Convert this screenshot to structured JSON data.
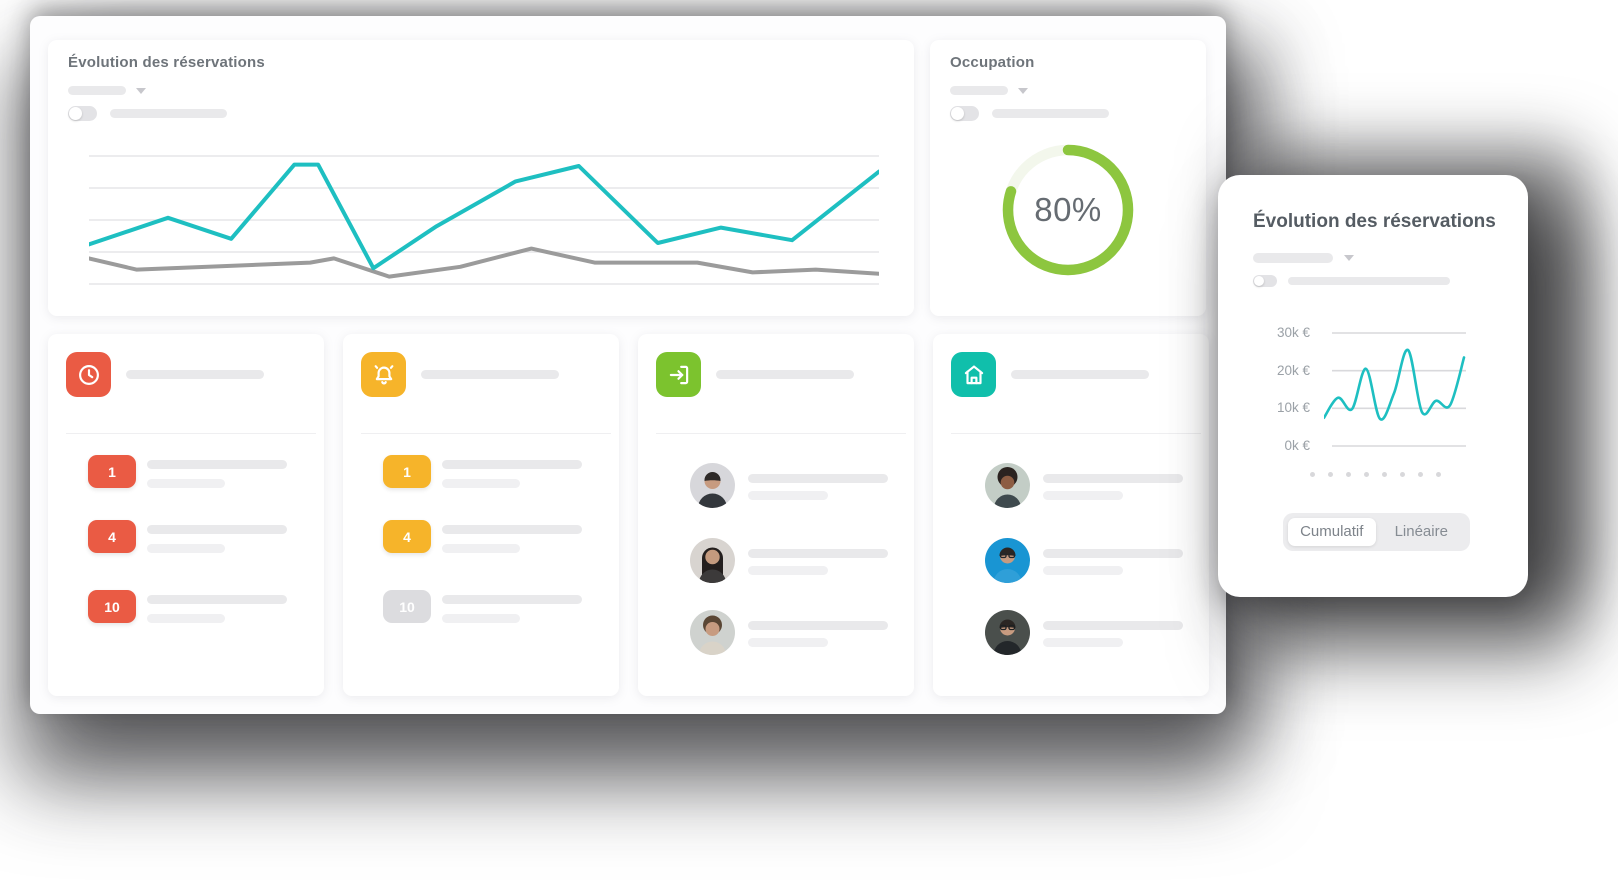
{
  "colors": {
    "accent_teal": "#1ebfc1",
    "series_gray": "#9b9b9b",
    "ring_green": "#8dc63f",
    "badge_red": "#ea5b44",
    "badge_amber": "#f6b42a",
    "icon_green": "#7cc32e",
    "icon_teal": "#10bfab"
  },
  "main_chart_card": {
    "title": "Évolution des réservations",
    "chart_data": {
      "type": "line",
      "axes_labeled": false,
      "gridline_count": 5,
      "note": "points are [x_pct, y_pct] of plot area, y measured from top",
      "series": [
        {
          "name": "reservations",
          "color": "#1ebfc1",
          "points": [
            [
              0,
              66
            ],
            [
              10,
              47
            ],
            [
              18,
              62
            ],
            [
              26,
              9
            ],
            [
              29,
              9
            ],
            [
              36,
              83
            ],
            [
              44,
              53
            ],
            [
              54,
              21
            ],
            [
              62,
              10
            ],
            [
              72,
              65
            ],
            [
              80,
              54
            ],
            [
              89,
              63
            ],
            [
              100,
              14
            ]
          ]
        },
        {
          "name": "comparison",
          "color": "#9b9b9b",
          "points": [
            [
              0,
              76
            ],
            [
              6,
              84
            ],
            [
              28,
              79
            ],
            [
              31,
              76
            ],
            [
              38,
              89
            ],
            [
              47,
              82
            ],
            [
              56,
              69
            ],
            [
              64,
              79
            ],
            [
              77,
              79
            ],
            [
              84,
              86
            ],
            [
              92,
              84
            ],
            [
              100,
              87
            ]
          ]
        }
      ]
    }
  },
  "occupation_card": {
    "title": "Occupation",
    "percent_label": "80%",
    "value": 80,
    "ring_color": "#8dc63f"
  },
  "stat_cards": [
    {
      "name": "pending",
      "icon": "clock-icon",
      "icon_bg": "#ea5b44",
      "items": [
        {
          "badge": "1",
          "muted": false
        },
        {
          "badge": "4",
          "muted": false
        },
        {
          "badge": "10",
          "muted": false
        }
      ]
    },
    {
      "name": "alerts",
      "icon": "bell-icon",
      "icon_bg": "#f6b42a",
      "items": [
        {
          "badge": "1",
          "muted": false
        },
        {
          "badge": "4",
          "muted": false
        },
        {
          "badge": "10",
          "muted": true
        }
      ]
    },
    {
      "name": "arrivals",
      "icon": "sign-in-icon",
      "icon_bg": "#7cc32e",
      "items": [
        {
          "avatar": "man-dark-hair"
        },
        {
          "avatar": "woman-long-hair"
        },
        {
          "avatar": "woman-curly-hair"
        }
      ]
    },
    {
      "name": "rooms",
      "icon": "home-icon",
      "icon_bg": "#10bfab",
      "items": [
        {
          "avatar": "woman-afro"
        },
        {
          "avatar": "man-glasses-blue"
        },
        {
          "avatar": "man-glasses-dark"
        }
      ]
    }
  ],
  "floating_card": {
    "title": "Évolution des réservations",
    "chart_data": {
      "type": "line",
      "unit": "k€",
      "ylim": [
        0,
        30
      ],
      "y_ticks": [
        "30k €",
        "20k €",
        "10k €",
        "0k €"
      ],
      "values_k_eur": [
        7.5,
        12.8,
        9.8,
        20.5,
        7.2,
        14,
        25.5,
        9,
        12,
        10.8,
        23.5
      ],
      "x_tick_placeholder_count": 8,
      "color": "#1ebfc1"
    },
    "view_toggle": {
      "options": [
        "Cumulatif",
        "Linéaire"
      ],
      "selected": "Cumulatif"
    }
  }
}
